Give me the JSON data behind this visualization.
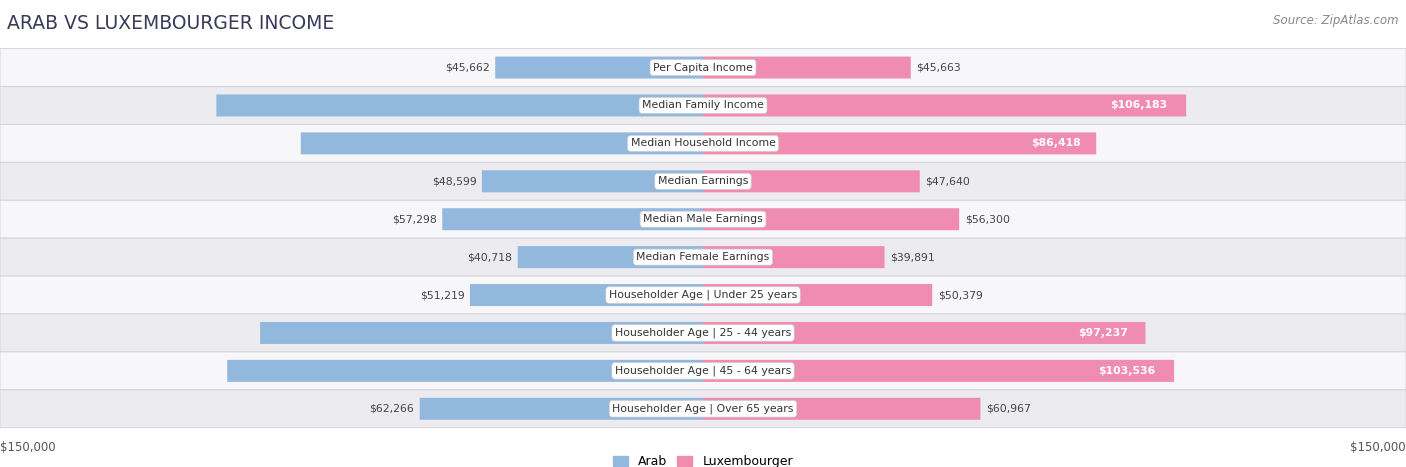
{
  "title": "ARAB VS LUXEMBOURGER INCOME",
  "source": "Source: ZipAtlas.com",
  "categories": [
    "Per Capita Income",
    "Median Family Income",
    "Median Household Income",
    "Median Earnings",
    "Median Male Earnings",
    "Median Female Earnings",
    "Householder Age | Under 25 years",
    "Householder Age | 25 - 44 years",
    "Householder Age | 45 - 64 years",
    "Householder Age | Over 65 years"
  ],
  "arab_values": [
    45662,
    106952,
    88398,
    48599,
    57298,
    40718,
    51219,
    97336,
    104566,
    62266
  ],
  "lux_values": [
    45663,
    106183,
    86418,
    47640,
    56300,
    39891,
    50379,
    97237,
    103536,
    60967
  ],
  "max_val": 150000,
  "arab_color_bar": "#93b8de",
  "lux_color_bar": "#f08cb0",
  "background_color": "#ffffff",
  "row_bg_even": "#f7f7f9",
  "row_bg_odd": "#ececf0",
  "bar_height": 0.58,
  "threshold_white": 70000,
  "legend_arab": "Arab",
  "legend_lux": "Luxembourger",
  "xlabel_left": "$150,000",
  "xlabel_right": "$150,000",
  "title_color": "#3a3a5a",
  "source_color": "#888888",
  "label_dark_color": "#444444",
  "label_white_color": "#ffffff",
  "center_label_color": "#333333"
}
